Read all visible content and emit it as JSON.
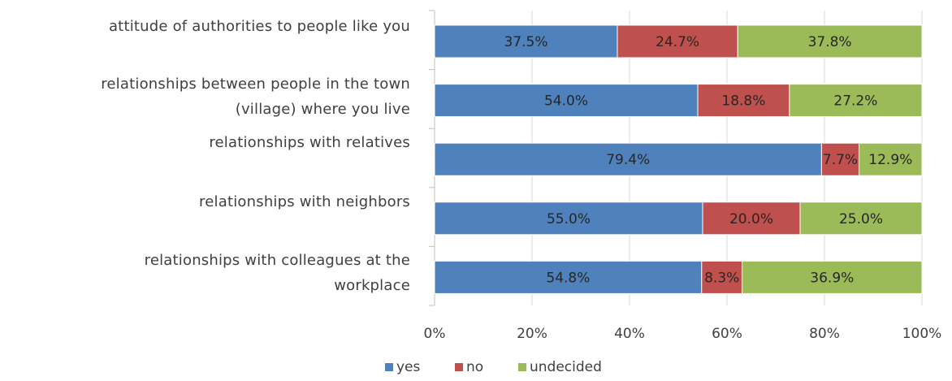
{
  "chart_data": {
    "type": "bar",
    "orientation": "horizontal",
    "stacked": "percent",
    "categories": [
      [
        "attitude of authorities to people like you"
      ],
      [
        "relationships between people in the town",
        "(village) where you live"
      ],
      [
        "relationships with relatives"
      ],
      [
        "relationships with neighbors"
      ],
      [
        "relationships with colleagues at the",
        "workplace"
      ]
    ],
    "series": [
      {
        "name": "yes",
        "color": "#4f81bd",
        "values": [
          37.5,
          54.0,
          79.4,
          55.0,
          54.8
        ],
        "labels": [
          "37.5%",
          "54.0%",
          "79.4%",
          "55.0%",
          "54.8%"
        ]
      },
      {
        "name": "no",
        "color": "#c0504d",
        "values": [
          24.7,
          18.8,
          7.7,
          20.0,
          8.3
        ],
        "labels": [
          "24.7%",
          "18.8%",
          "7.7%",
          "20.0%",
          "8.3%"
        ]
      },
      {
        "name": "undecided",
        "color": "#9bbb59",
        "values": [
          37.8,
          27.2,
          12.9,
          25.0,
          36.9
        ],
        "labels": [
          "37.8%",
          "27.2%",
          "12.9%",
          "25.0%",
          "36.9%"
        ]
      }
    ],
    "x_ticks": [
      "0%",
      "20%",
      "40%",
      "60%",
      "80%",
      "100%"
    ],
    "xlim": [
      0,
      100
    ],
    "grid": true,
    "legend_position": "bottom",
    "title": "",
    "xlabel": "",
    "ylabel": ""
  }
}
